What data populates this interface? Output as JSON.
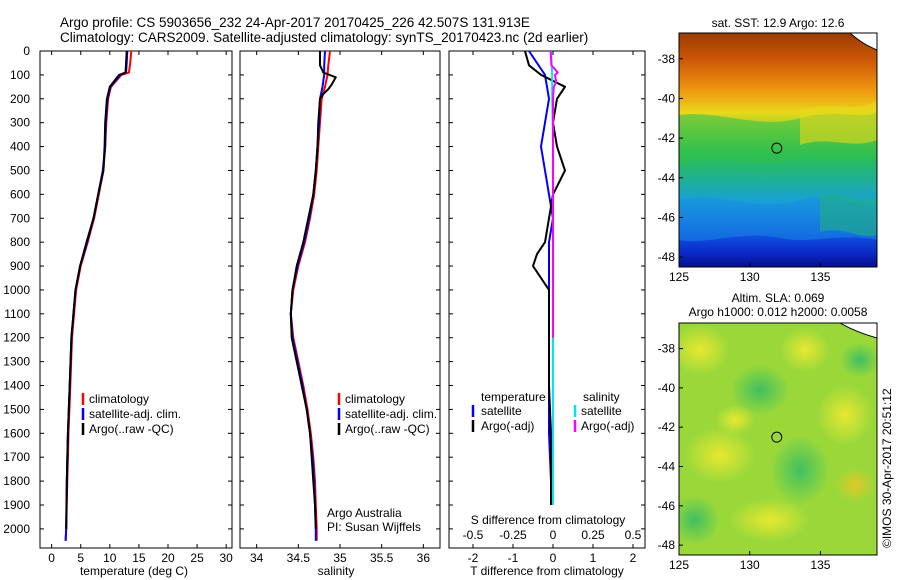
{
  "header": {
    "line1": "Argo profile: CS 5903656_232 24-Apr-2017 20170425_226 42.507S 131.913E",
    "line2": "Climatology: CARS2009. Satellite-adjusted climatology: synTS_20170423.nc (2d earlier)"
  },
  "credits": {
    "org": "Argo Australia",
    "pi": "PI: Susan Wijffels",
    "copyright": "©IMOS 30-Apr-2017 20:51:12"
  },
  "colors": {
    "climatology": "#ff0000",
    "satellite": "#0000ff",
    "argo": "#000000",
    "sal_satellite": "#00e5ee",
    "sal_argo": "#ff00ff"
  },
  "chart_data": [
    {
      "type": "line",
      "name": "temperature-profile",
      "xlabel": "temperature (deg C)",
      "ylabel": "",
      "xlim": [
        -2,
        31
      ],
      "ylim": [
        2080,
        0
      ],
      "xticks": [
        0,
        5,
        10,
        15,
        20,
        25,
        30
      ],
      "yticks": [
        0,
        100,
        200,
        300,
        400,
        500,
        600,
        700,
        800,
        900,
        1000,
        1100,
        1200,
        1300,
        1400,
        1500,
        1600,
        1700,
        1800,
        1900,
        2000
      ],
      "legend": [
        "climatology",
        "satellite-adj. clim.",
        "Argo(..raw -QC)"
      ],
      "legend_position": "bottom-center",
      "series": [
        {
          "name": "climatology",
          "depth": [
            0,
            50,
            90,
            100,
            150,
            200,
            300,
            400,
            500,
            600,
            700,
            800,
            900,
            1000,
            1200,
            1400,
            1600,
            1800,
            2000,
            2050
          ],
          "values": [
            13.7,
            13.5,
            13.3,
            12.0,
            10.2,
            9.7,
            9.4,
            9.2,
            8.9,
            8.1,
            7.3,
            6.2,
            5.0,
            4.2,
            3.5,
            3.2,
            2.9,
            2.7,
            2.5,
            2.4
          ]
        },
        {
          "name": "satellite-adj. clim.",
          "depth": [
            0,
            50,
            90,
            100,
            150,
            200,
            300,
            400,
            500,
            600,
            700,
            800,
            900,
            1000,
            1200,
            1400,
            1600,
            1800,
            2000,
            2050
          ],
          "values": [
            13.0,
            12.9,
            12.8,
            11.8,
            10.1,
            9.6,
            9.3,
            9.2,
            8.8,
            8.0,
            7.2,
            6.1,
            4.9,
            4.1,
            3.4,
            3.1,
            2.8,
            2.6,
            2.5,
            2.4
          ]
        },
        {
          "name": "Argo(..raw -QC)",
          "depth": [
            0,
            50,
            90,
            100,
            150,
            200,
            300,
            400,
            500,
            600,
            700,
            800,
            900,
            1000,
            1200,
            1400,
            1600,
            1800,
            2000
          ],
          "values": [
            12.9,
            12.8,
            12.7,
            11.6,
            10.0,
            9.5,
            9.2,
            9.1,
            8.9,
            8.0,
            7.2,
            6.0,
            4.9,
            4.1,
            3.4,
            3.1,
            2.8,
            2.6,
            2.5
          ]
        }
      ]
    },
    {
      "type": "line",
      "name": "salinity-profile",
      "xlabel": "salinity",
      "xlim": [
        33.8,
        36.2
      ],
      "ylim": [
        2080,
        0
      ],
      "xticks": [
        34,
        34.5,
        35,
        35.5,
        36
      ],
      "xticklabels": [
        "34",
        "34.5",
        "35",
        "35.5",
        "36"
      ],
      "legend": [
        "climatology",
        "satellite-adj. clim.",
        "Argo(..raw -QC)"
      ],
      "legend_position": "bottom-right",
      "series": [
        {
          "name": "climatology",
          "depth": [
            0,
            60,
            100,
            150,
            200,
            300,
            400,
            500,
            600,
            700,
            800,
            900,
            1000,
            1100,
            1200,
            1300,
            1400,
            1500,
            1600,
            1700,
            1800,
            1900,
            2000,
            2050
          ],
          "values": [
            34.88,
            34.86,
            34.85,
            34.82,
            34.78,
            34.76,
            34.74,
            34.72,
            34.69,
            34.64,
            34.58,
            34.5,
            34.44,
            34.41,
            34.44,
            34.5,
            34.56,
            34.61,
            34.65,
            34.68,
            34.7,
            34.71,
            34.72,
            34.72
          ]
        },
        {
          "name": "satellite-adj. clim.",
          "depth": [
            0,
            60,
            100,
            150,
            200,
            300,
            400,
            500,
            600,
            700,
            800,
            900,
            1000,
            1100,
            1200,
            1300,
            1400,
            1500,
            1600,
            1700,
            1800,
            1900,
            2000,
            2050
          ],
          "values": [
            34.82,
            34.81,
            34.81,
            34.79,
            34.76,
            34.75,
            34.73,
            34.71,
            34.68,
            34.63,
            34.57,
            34.49,
            34.43,
            34.41,
            34.43,
            34.49,
            34.55,
            34.6,
            34.64,
            34.67,
            34.69,
            34.7,
            34.71,
            34.71
          ]
        },
        {
          "name": "Argo(..raw -QC)",
          "depth": [
            0,
            60,
            90,
            110,
            140,
            160,
            180,
            200,
            300,
            400,
            500,
            600,
            700,
            800,
            900,
            1000,
            1100,
            1200,
            1300,
            1400,
            1500,
            1600,
            1700,
            1800,
            1900,
            2000
          ],
          "values": [
            34.76,
            34.76,
            34.8,
            34.95,
            34.9,
            34.86,
            34.8,
            34.76,
            34.74,
            34.73,
            34.71,
            34.68,
            34.62,
            34.56,
            34.48,
            34.43,
            34.41,
            34.42,
            34.48,
            34.54,
            34.6,
            34.64,
            34.66,
            34.68,
            34.7,
            34.71
          ]
        }
      ]
    },
    {
      "type": "line",
      "name": "difference-profile",
      "xlabel": "T difference from climatology",
      "xlabel_top": "S difference from climatology",
      "xlim": [
        -2.6,
        2.3
      ],
      "ylim": [
        2080,
        0
      ],
      "xticks": [
        -2,
        -1,
        0,
        1,
        2
      ],
      "xticks_top": [
        -0.5,
        -0.25,
        0,
        0.25,
        0.5
      ],
      "xticklabels_top": [
        "-0.5",
        "-0.25",
        "0",
        "0.25",
        "0.5"
      ],
      "legend_titles": [
        "temperature",
        "salinity"
      ],
      "legend": [
        "satellite",
        "Argo(-adj)",
        "satellite",
        "Argo(-adj)"
      ],
      "series": [
        {
          "name": "temperature satellite",
          "depth": [
            0,
            100,
            200,
            300,
            400,
            500,
            600,
            700,
            800,
            900,
            1000,
            1200,
            1400,
            1600,
            1800,
            1900
          ],
          "values": [
            -0.6,
            -0.2,
            -0.1,
            -0.2,
            -0.3,
            -0.2,
            -0.1,
            0.0,
            -0.1,
            -0.1,
            -0.1,
            -0.1,
            -0.1,
            -0.1,
            -0.05,
            -0.05
          ]
        },
        {
          "name": "temperature Argo(-adj)",
          "depth": [
            0,
            60,
            100,
            150,
            200,
            300,
            400,
            500,
            600,
            700,
            800,
            850,
            900,
            1000,
            1200,
            1400,
            1600,
            1800,
            1900
          ],
          "values": [
            -0.7,
            -0.6,
            -0.3,
            0.3,
            0.1,
            0.0,
            0.1,
            0.3,
            0.0,
            -0.1,
            -0.2,
            -0.4,
            -0.5,
            -0.1,
            -0.1,
            -0.1,
            -0.05,
            -0.05,
            -0.05
          ]
        },
        {
          "name": "salinity satellite",
          "depth": [
            0,
            100,
            200,
            300,
            400,
            500,
            600,
            700,
            800,
            900,
            1000,
            1200,
            1400,
            1600,
            1800,
            1900
          ],
          "values": [
            -0.05,
            -0.02,
            -0.02,
            -0.01,
            0.0,
            0.0,
            0.0,
            0.0,
            0.0,
            0.0,
            0.0,
            0.0,
            0.0,
            0.0,
            0.0,
            0.0
          ]
        },
        {
          "name": "salinity Argo(-adj)",
          "depth": [
            0,
            60,
            90,
            100,
            130,
            150,
            200,
            300,
            400,
            500,
            600,
            700,
            800,
            900,
            1000,
            1200
          ],
          "values": [
            -0.06,
            -0.04,
            0.12,
            0.05,
            0.08,
            0.02,
            0.0,
            0.0,
            0.0,
            0.0,
            0.0,
            0.0,
            0.0,
            0.0,
            0.0,
            0.0
          ]
        }
      ]
    },
    {
      "type": "heatmap",
      "name": "sst-map",
      "title": "sat. SST: 12.9 Argo: 12.6",
      "xlim": [
        125,
        139
      ],
      "ylim": [
        -48.5,
        -36.7
      ],
      "xticks": [
        125,
        130,
        135
      ],
      "yticks": [
        -38,
        -40,
        -42,
        -44,
        -46,
        -48
      ],
      "marker": {
        "lon": 131.913,
        "lat": -42.507
      }
    },
    {
      "type": "heatmap",
      "name": "sla-map",
      "title": "Altim. SLA: 0.069",
      "subtitle": "Argo h1000: 0.012 h2000: 0.0058",
      "xlim": [
        125,
        139
      ],
      "ylim": [
        -48.5,
        -36.7
      ],
      "xticks": [
        125,
        130,
        135
      ],
      "yticks": [
        -38,
        -40,
        -42,
        -44,
        -46,
        -48
      ],
      "marker": {
        "lon": 131.913,
        "lat": -42.507
      }
    }
  ]
}
